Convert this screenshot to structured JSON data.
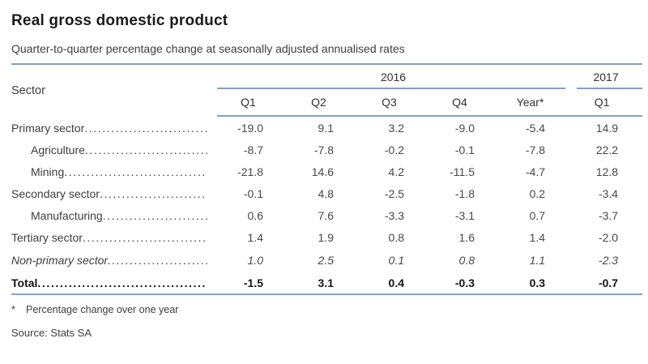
{
  "page": {
    "title": "Real gross domestic product",
    "subtitle": "Quarter-to-quarter percentage change at seasonally adjusted annualised rates",
    "footnote_marker": "*",
    "footnote": "Percentage change over one year",
    "source": "Source: Stats SA"
  },
  "colors": {
    "rule_blue": "#84a1c1",
    "title_text": "#1b1b1d",
    "body_text": "#3d3d3f",
    "number_text": "#48484a",
    "total_text": "#151517"
  },
  "table": {
    "sector_header": "Sector",
    "year_groups": [
      {
        "label": "2016",
        "span": 5
      },
      {
        "label": "2017",
        "span": 1
      }
    ],
    "quarter_columns": [
      "Q1",
      "Q2",
      "Q3",
      "Q4",
      "Year*",
      "Q1"
    ],
    "rows": [
      {
        "label": "Primary sector",
        "indent": false,
        "style": "normal",
        "values": [
          "-19.0",
          "9.1",
          "3.2",
          "-9.0",
          "-5.4",
          "14.9"
        ]
      },
      {
        "label": "Agriculture",
        "indent": true,
        "style": "normal",
        "values": [
          "-8.7",
          "-7.8",
          "-0.2",
          "-0.1",
          "-7.8",
          "22.2"
        ]
      },
      {
        "label": "Mining",
        "indent": true,
        "style": "normal",
        "values": [
          "-21.8",
          "14.6",
          "4.2",
          "-11.5",
          "-4.7",
          "12.8"
        ]
      },
      {
        "label": "Secondary sector",
        "indent": false,
        "style": "normal",
        "values": [
          "-0.1",
          "4.8",
          "-2.5",
          "-1.8",
          "0.2",
          "-3.4"
        ]
      },
      {
        "label": "Manufacturing",
        "indent": true,
        "style": "normal",
        "values": [
          "0.6",
          "7.6",
          "-3.3",
          "-3.1",
          "0.7",
          "-3.7"
        ]
      },
      {
        "label": "Tertiary sector",
        "indent": false,
        "style": "normal",
        "values": [
          "1.4",
          "1.9",
          "0.8",
          "1.6",
          "1.4",
          "-2.0"
        ]
      },
      {
        "label": "Non-primary sector",
        "indent": false,
        "style": "italic",
        "values": [
          "1.0",
          "2.5",
          "0.1",
          "0.8",
          "1.1",
          "-2.3"
        ]
      },
      {
        "label": "Total",
        "indent": false,
        "style": "total",
        "values": [
          "-1.5",
          "3.1",
          "0.4",
          "-0.3",
          "0.3",
          "-0.7"
        ]
      }
    ]
  }
}
